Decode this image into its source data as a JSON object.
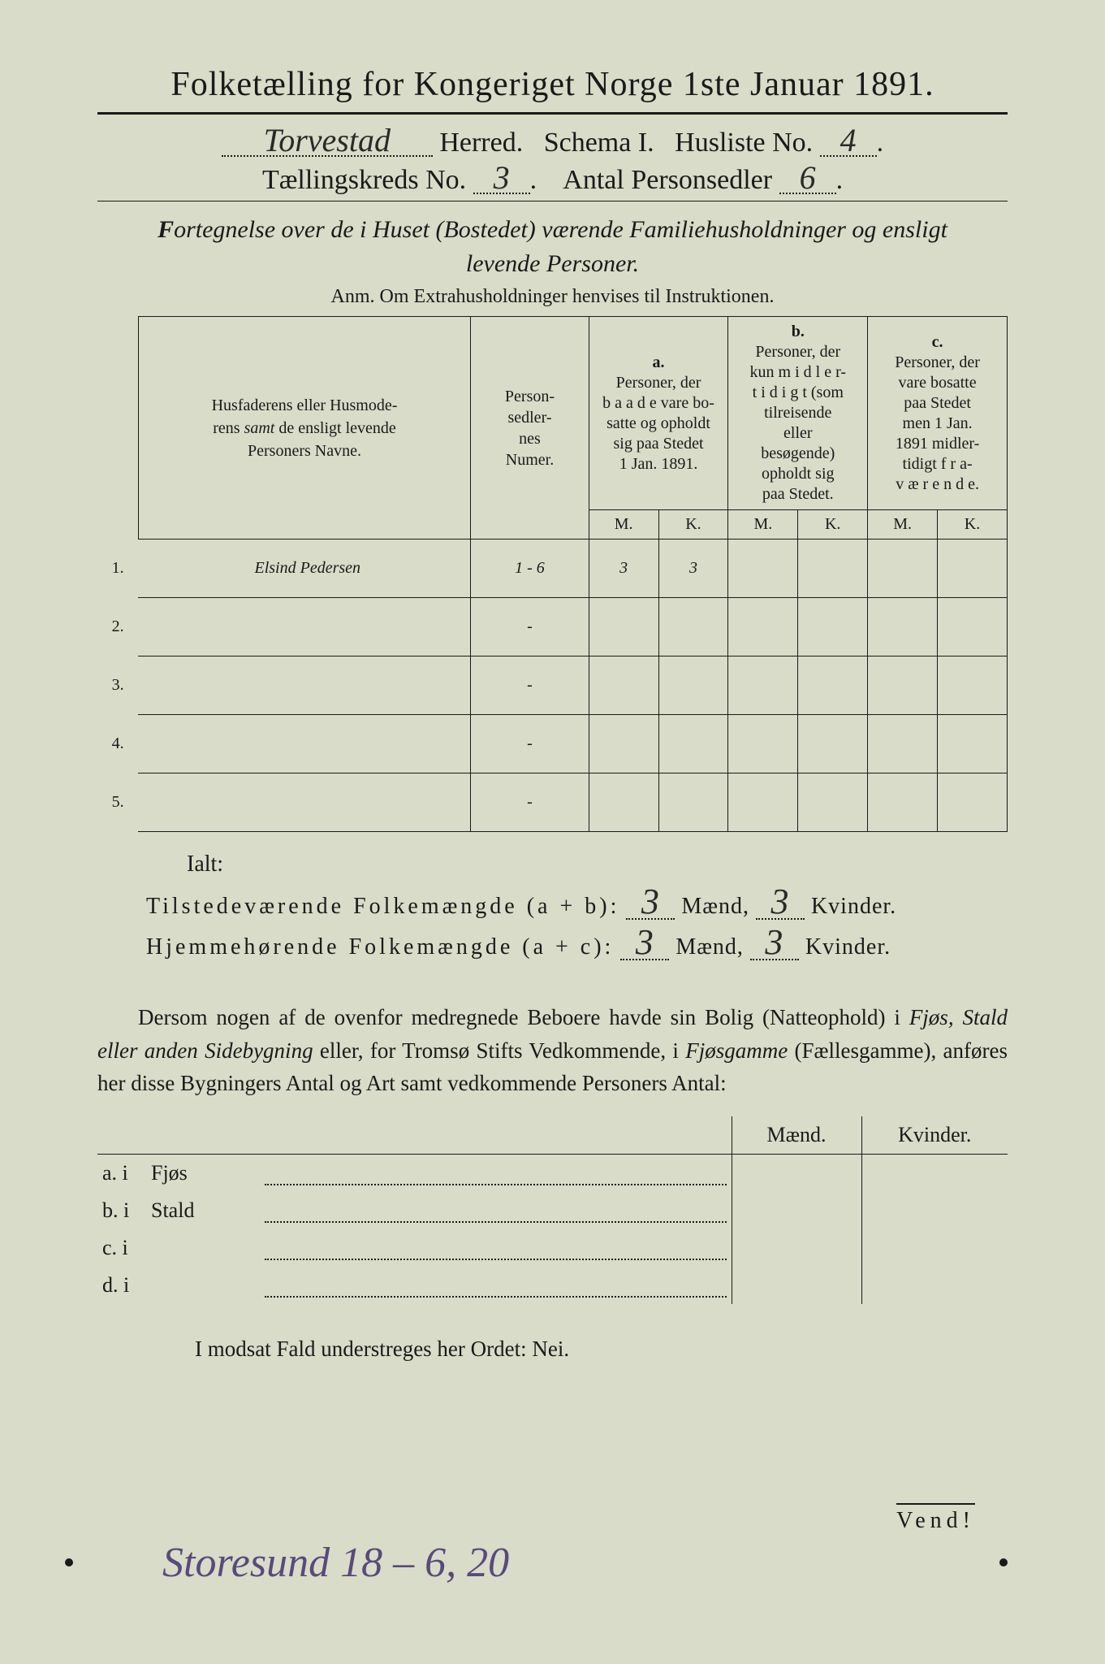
{
  "page": {
    "background_color": "#d8dcc8",
    "text_color": "#1a1a1a",
    "handwriting_color": "#2a2a2a",
    "purple_ink": "#5a4a7a"
  },
  "header": {
    "title": "Folketælling for Kongeriget Norge 1ste Januar 1891.",
    "herred_value": "Torvestad",
    "herred_label": "Herred.",
    "schema_label": "Schema I.",
    "husliste_label": "Husliste No.",
    "husliste_value": "4",
    "kreds_label": "Tællingskreds No.",
    "kreds_value": "3",
    "antal_label": "Antal Personsedler",
    "antal_value": "6"
  },
  "subtitle": {
    "line1": "Fortegnelse over de i Huset (Bostedet) værende Familiehusholdninger og ensligt levende Personer.",
    "anm": "Anm. Om Extrahusholdninger henvises til Instruktionen."
  },
  "table": {
    "col_navne": "Husfaderens eller Husmoderens samt de ensligt levende Personers Navne.",
    "col_numer": "Person-sedler-nes Numer.",
    "col_a_label": "a.",
    "col_a": "Personer, der baade vare bosatte og opholdt sig paa Stedet 1 Jan. 1891.",
    "col_b_label": "b.",
    "col_b": "Personer, der kun midlertidigt (som tilreisende eller besøgende) opholdt sig paa Stedet.",
    "col_c_label": "c.",
    "col_c": "Personer, der vare bosatte paa Stedet men 1 Jan. 1891 midlertidigt fraværende.",
    "m": "M.",
    "k": "K.",
    "rows": [
      {
        "n": "1.",
        "name": "Elsind Pedersen",
        "numer": "1 - 6",
        "a_m": "3",
        "a_k": "3",
        "b_m": "",
        "b_k": "",
        "c_m": "",
        "c_k": ""
      },
      {
        "n": "2.",
        "name": "",
        "numer": "-",
        "a_m": "",
        "a_k": "",
        "b_m": "",
        "b_k": "",
        "c_m": "",
        "c_k": ""
      },
      {
        "n": "3.",
        "name": "",
        "numer": "-",
        "a_m": "",
        "a_k": "",
        "b_m": "",
        "b_k": "",
        "c_m": "",
        "c_k": ""
      },
      {
        "n": "4.",
        "name": "",
        "numer": "-",
        "a_m": "",
        "a_k": "",
        "b_m": "",
        "b_k": "",
        "c_m": "",
        "c_k": ""
      },
      {
        "n": "5.",
        "name": "",
        "numer": "-",
        "a_m": "",
        "a_k": "",
        "b_m": "",
        "b_k": "",
        "c_m": "",
        "c_k": ""
      }
    ]
  },
  "totals": {
    "ialt": "Ialt:",
    "line1_label": "Tilstedeværende Folkemængde (a + b):",
    "line1_m": "3",
    "maend": "Mænd,",
    "line1_k": "3",
    "kvinder": "Kvinder.",
    "line2_label": "Hjemmehørende Folkemængde (a + c):",
    "line2_m": "3",
    "line2_k": "3"
  },
  "para": "Dersom nogen af de ovenfor medregnede Beboere havde sin Bolig (Natteophold) i Fjøs, Stald eller anden Sidebygning eller, for Tromsø Stifts Vedkommende, i Fjøsgamme (Fællesgamme), anføres her disse Bygningers Antal og Art samt vedkommende Personers Antal:",
  "bldg": {
    "maend": "Mænd.",
    "kvinder": "Kvinder.",
    "rows": [
      {
        "l": "a.  i",
        "t": "Fjøs"
      },
      {
        "l": "b.  i",
        "t": "Stald"
      },
      {
        "l": "c.  i",
        "t": ""
      },
      {
        "l": "d.  i",
        "t": ""
      }
    ]
  },
  "modsat": "I modsat Fald understreges her Ordet: Nei.",
  "vend": "Vend!",
  "bottom_note": "Storesund 18 – 6, 20"
}
